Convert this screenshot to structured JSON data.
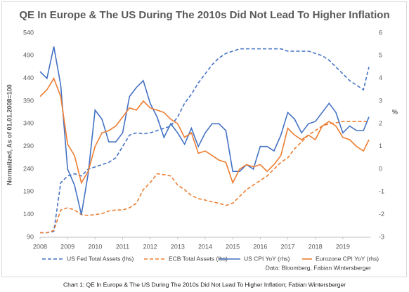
{
  "chart_data": {
    "type": "line",
    "title": "QE In Europe & The US During The 2010s Did Not Lead To Higher Inflation",
    "ylabel": "Normalized, As of 01.01.2008=100",
    "y2label": "%",
    "source": "Data: Bloomberg, Fabian Wintersberger",
    "caption": "Chart 1: QE In Europe & The US During The 2010s Did Not Lead To Higher Inflation; Fabian Wintersberger",
    "xlim": [
      2008,
      2020
    ],
    "xticks": [
      2008,
      2009,
      2010,
      2011,
      2012,
      2013,
      2014,
      2015,
      2016,
      2017,
      2018,
      2019
    ],
    "ylim": [
      90,
      540
    ],
    "yticks": [
      90,
      140,
      190,
      240,
      290,
      340,
      390,
      440,
      490,
      540
    ],
    "y2lim": [
      -3,
      6
    ],
    "y2ticks": [
      -3,
      -2,
      -1,
      0,
      1,
      2,
      3,
      4,
      5,
      6
    ],
    "x": [
      2008,
      2008.25,
      2008.5,
      2008.75,
      2009,
      2009.25,
      2009.5,
      2009.75,
      2010,
      2010.25,
      2010.5,
      2010.75,
      2011,
      2011.25,
      2011.5,
      2011.75,
      2012,
      2012.25,
      2012.5,
      2012.75,
      2013,
      2013.25,
      2013.5,
      2013.75,
      2014,
      2014.25,
      2014.5,
      2014.75,
      2015,
      2015.25,
      2015.5,
      2015.75,
      2016,
      2016.25,
      2016.5,
      2016.75,
      2017,
      2017.25,
      2017.5,
      2017.75,
      2018,
      2018.25,
      2018.5,
      2018.75,
      2019,
      2019.25,
      2019.5,
      2019.75,
      2019.95
    ],
    "series": [
      {
        "name": "US Fed Total Assets (lhs)",
        "color": "#4472c4",
        "dashed": true,
        "axis": "y",
        "values": [
          100,
          100,
          103,
          210,
          225,
          230,
          225,
          240,
          245,
          250,
          255,
          265,
          290,
          315,
          320,
          318,
          320,
          325,
          330,
          335,
          355,
          385,
          405,
          430,
          450,
          470,
          485,
          495,
          500,
          505,
          505,
          505,
          505,
          505,
          505,
          505,
          500,
          500,
          500,
          500,
          495,
          490,
          480,
          465,
          450,
          435,
          425,
          415,
          465
        ]
      },
      {
        "name": "ECB Total Assets (lhs)",
        "color": "#ed7d31",
        "dashed": true,
        "axis": "y",
        "values": [
          100,
          100,
          105,
          150,
          155,
          150,
          140,
          138,
          140,
          142,
          148,
          150,
          150,
          155,
          165,
          195,
          210,
          230,
          228,
          225,
          205,
          195,
          182,
          175,
          172,
          168,
          165,
          160,
          165,
          180,
          195,
          205,
          215,
          225,
          240,
          255,
          265,
          285,
          300,
          315,
          325,
          335,
          340,
          342,
          345,
          345,
          345,
          345,
          345
        ]
      },
      {
        "name": "US CPI YoY (rhs)",
        "color": "#4472c4",
        "dashed": false,
        "axis": "y2",
        "values": [
          4.3,
          4.0,
          5.4,
          3.7,
          0.0,
          -0.7,
          -2.0,
          -0.2,
          2.6,
          2.2,
          1.2,
          1.2,
          1.6,
          3.2,
          3.6,
          3.9,
          2.9,
          2.3,
          1.4,
          2.0,
          1.6,
          1.1,
          1.8,
          1.0,
          1.6,
          2.0,
          2.0,
          1.7,
          -0.1,
          -0.1,
          0.2,
          0.0,
          1.0,
          1.0,
          0.8,
          1.5,
          2.5,
          2.2,
          1.6,
          2.0,
          2.1,
          2.5,
          2.9,
          2.5,
          1.6,
          1.9,
          1.7,
          1.7,
          2.3
        ]
      },
      {
        "name": "Eurozone CPI YoY (rhs)",
        "color": "#ed7d31",
        "dashed": false,
        "axis": "y2",
        "values": [
          3.2,
          3.5,
          4.0,
          3.2,
          1.1,
          0.6,
          -0.6,
          -0.1,
          1.0,
          1.6,
          1.7,
          1.9,
          2.3,
          2.7,
          2.6,
          3.0,
          2.7,
          2.6,
          2.5,
          2.2,
          2.0,
          1.4,
          1.6,
          0.7,
          0.8,
          0.6,
          0.4,
          0.3,
          -0.6,
          0.0,
          0.2,
          0.1,
          0.2,
          -0.1,
          0.2,
          0.6,
          1.8,
          1.5,
          1.3,
          1.5,
          1.3,
          1.9,
          2.1,
          1.9,
          1.4,
          1.3,
          1.0,
          0.8,
          1.3
        ]
      }
    ]
  }
}
